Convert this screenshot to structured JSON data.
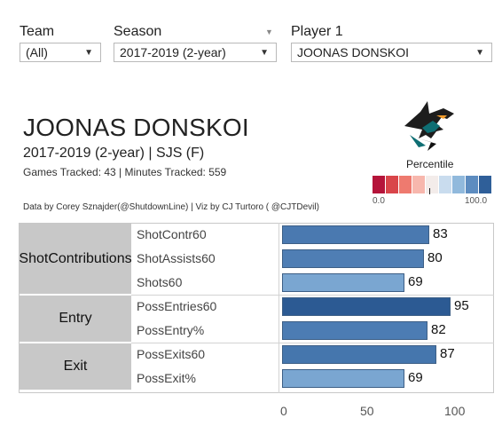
{
  "filters": {
    "team": {
      "label": "Team",
      "value": "(All)"
    },
    "season": {
      "label": "Season",
      "value": "2017-2019 (2-year)"
    },
    "player": {
      "label": "Player 1",
      "value": "JOONAS DONSKOI"
    }
  },
  "header": {
    "player_name": "JOONAS DONSKOI",
    "season_team": "2017-2019 (2-year) | SJS (F)",
    "tracking": "Games Tracked: 43  | Minutes Tracked: 559",
    "credits": "Data by Corey Sznajder(@ShutdownLine) | Viz by CJ Turtoro ( @CJTDevil)"
  },
  "legend": {
    "title": "Percentile",
    "min_label": "0.0",
    "max_label": "100.0",
    "colors": [
      "#b5143a",
      "#d9454a",
      "#ee7a6f",
      "#f7b7ad",
      "#f3ecea",
      "#c9dcee",
      "#91b9dc",
      "#5d8cc0",
      "#2f5f99"
    ]
  },
  "logo": {
    "icon": "sjs-shark-logo"
  },
  "chart_data": {
    "type": "bar",
    "orientation": "horizontal",
    "groups": [
      {
        "label_lines": [
          "Shot",
          "Contributions"
        ],
        "metrics": [
          "ShotContr60",
          "ShotAssists60",
          "Shots60"
        ]
      },
      {
        "label_lines": [
          "Entry"
        ],
        "metrics": [
          "PossEntries60",
          "PossEntry%"
        ]
      },
      {
        "label_lines": [
          "Exit"
        ],
        "metrics": [
          "PossExits60",
          "PossExit%"
        ]
      }
    ],
    "categories": [
      "ShotContr60",
      "ShotAssists60",
      "Shots60",
      "PossEntries60",
      "PossEntry%",
      "PossExits60",
      "PossExit%"
    ],
    "values": [
      83,
      80,
      69,
      95,
      82,
      87,
      69
    ],
    "xlim": [
      0,
      115
    ],
    "xticks": [
      "0",
      "50",
      "100"
    ],
    "color_scale": "percentile diverging red-white-blue",
    "bar_colors": [
      "#4a79b0",
      "#4f7eb4",
      "#7aa6d1",
      "#2c5a93",
      "#4c7cb3",
      "#4576ad",
      "#7aa6d1"
    ]
  }
}
